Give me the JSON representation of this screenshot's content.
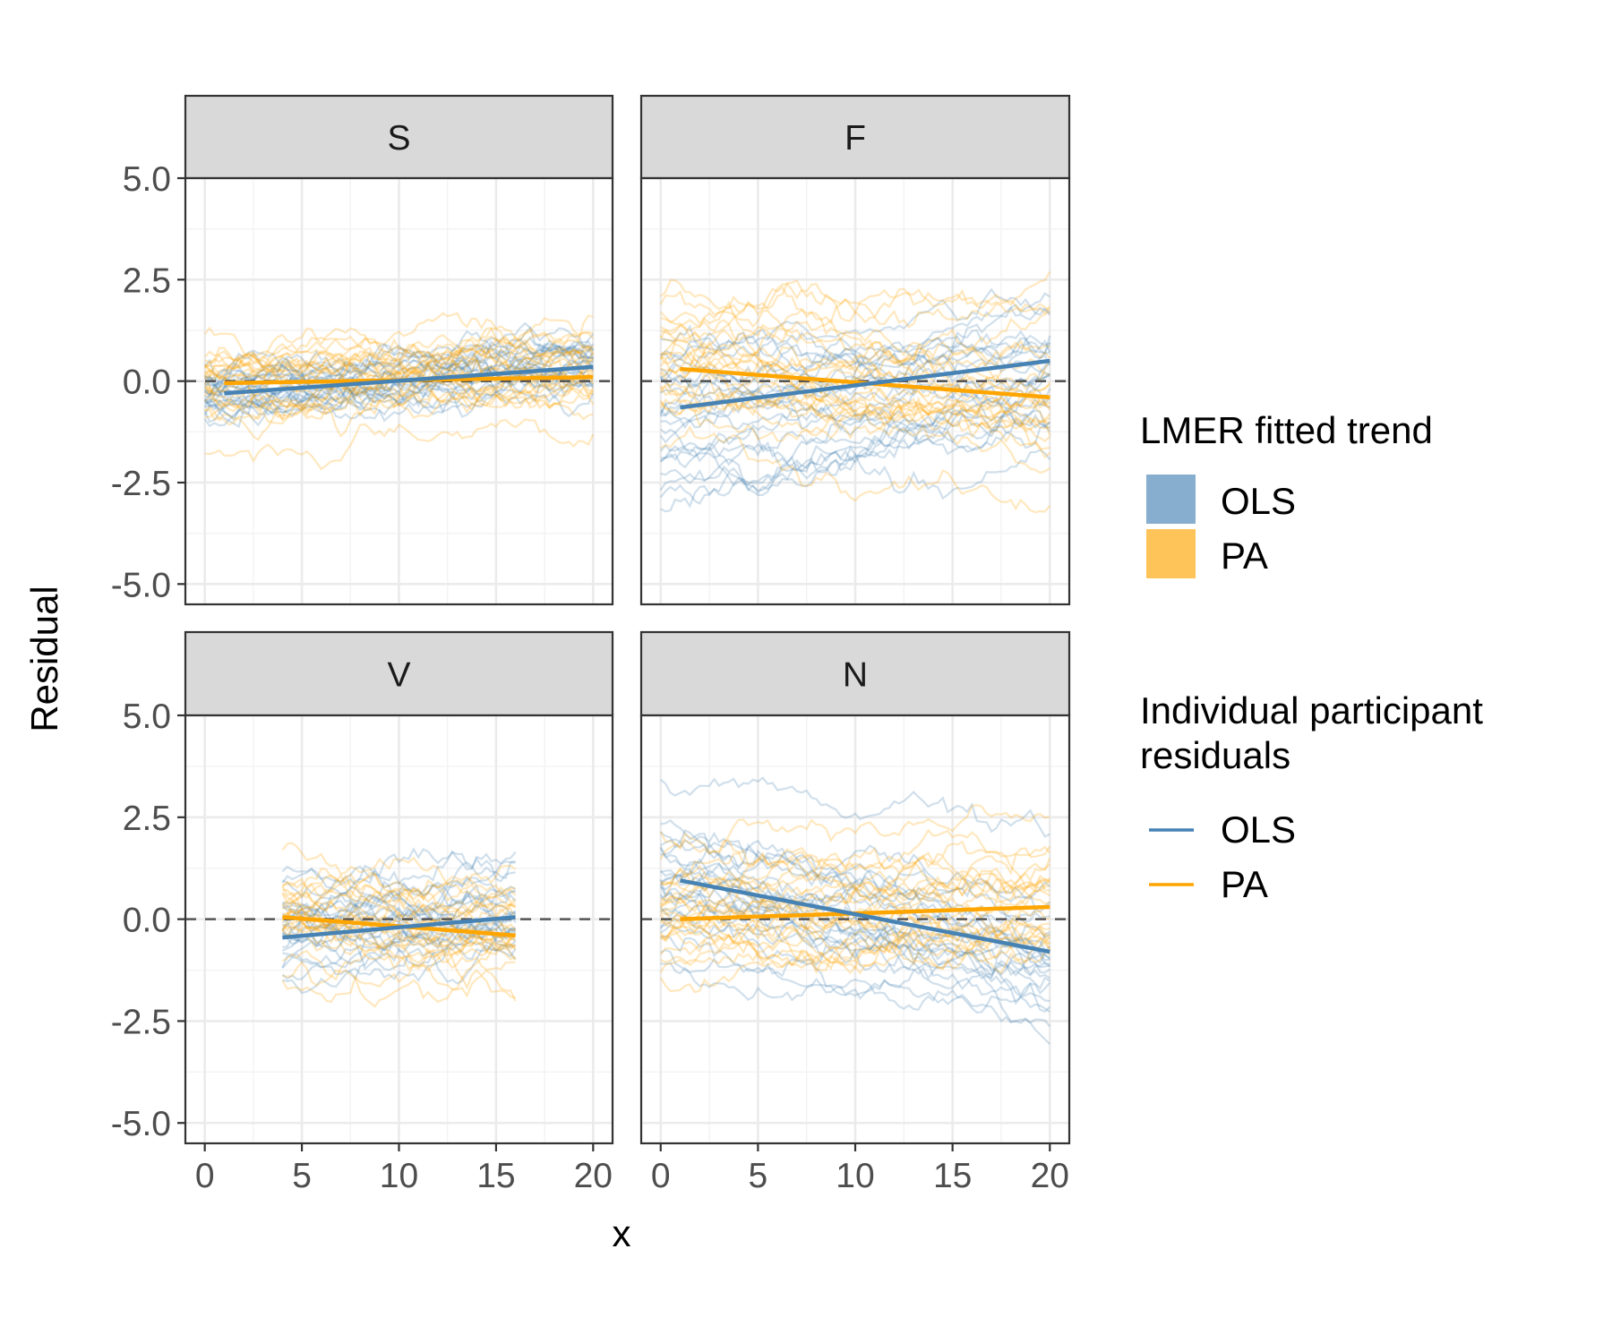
{
  "chart_data": {
    "type": "line",
    "layout": "facet-grid 2x2",
    "xlabel": "x",
    "ylabel": "Residual",
    "xlim": [
      -1,
      21
    ],
    "ylim": [
      -5.5,
      5
    ],
    "x_ticks": [
      "0",
      "5",
      "10",
      "15",
      "20"
    ],
    "y_ticks": [
      "-5.0",
      "-2.5",
      "0.0",
      "2.5",
      "5.0"
    ],
    "reference_line": {
      "y": 0,
      "style": "dashed"
    },
    "colors": {
      "OLS": "#4682b4",
      "PA": "#ffa500"
    },
    "legends": [
      {
        "title": "LMER fitted trend",
        "type": "fill",
        "entries": [
          "OLS",
          "PA"
        ]
      },
      {
        "title": "Individual participant residuals",
        "title_lines": [
          "Individual participant",
          "residuals"
        ],
        "type": "line",
        "entries": [
          "OLS",
          "PA"
        ]
      }
    ],
    "panels": [
      {
        "label": "S",
        "x_range": [
          0,
          20
        ],
        "trend": [
          {
            "series": "OLS",
            "x": [
              1,
              20
            ],
            "y": [
              -0.3,
              0.35
            ]
          },
          {
            "series": "PA",
            "x": [
              1,
              20
            ],
            "y": [
              -0.05,
              0.1
            ]
          }
        ],
        "spread": {
          "OLS": 0.45,
          "PA": 0.55
        }
      },
      {
        "label": "F",
        "x_range": [
          0,
          20
        ],
        "trend": [
          {
            "series": "OLS",
            "x": [
              1,
              20
            ],
            "y": [
              -0.65,
              0.5
            ]
          },
          {
            "series": "PA",
            "x": [
              1,
              20
            ],
            "y": [
              0.3,
              -0.4
            ]
          }
        ],
        "spread": {
          "OLS": 0.9,
          "PA": 1.0
        }
      },
      {
        "label": "V",
        "x_range": [
          4,
          16
        ],
        "trend": [
          {
            "series": "OLS",
            "x": [
              4,
              16
            ],
            "y": [
              -0.45,
              0.05
            ]
          },
          {
            "series": "PA",
            "x": [
              4,
              16
            ],
            "y": [
              0.05,
              -0.4
            ]
          }
        ],
        "spread": {
          "OLS": 0.75,
          "PA": 0.8
        }
      },
      {
        "label": "N",
        "x_range": [
          0,
          20
        ],
        "trend": [
          {
            "series": "OLS",
            "x": [
              1,
              20
            ],
            "y": [
              0.95,
              -0.8
            ]
          },
          {
            "series": "PA",
            "x": [
              1,
              20
            ],
            "y": [
              0.0,
              0.3
            ]
          }
        ],
        "spread": {
          "OLS": 0.8,
          "PA": 0.9
        }
      }
    ]
  }
}
